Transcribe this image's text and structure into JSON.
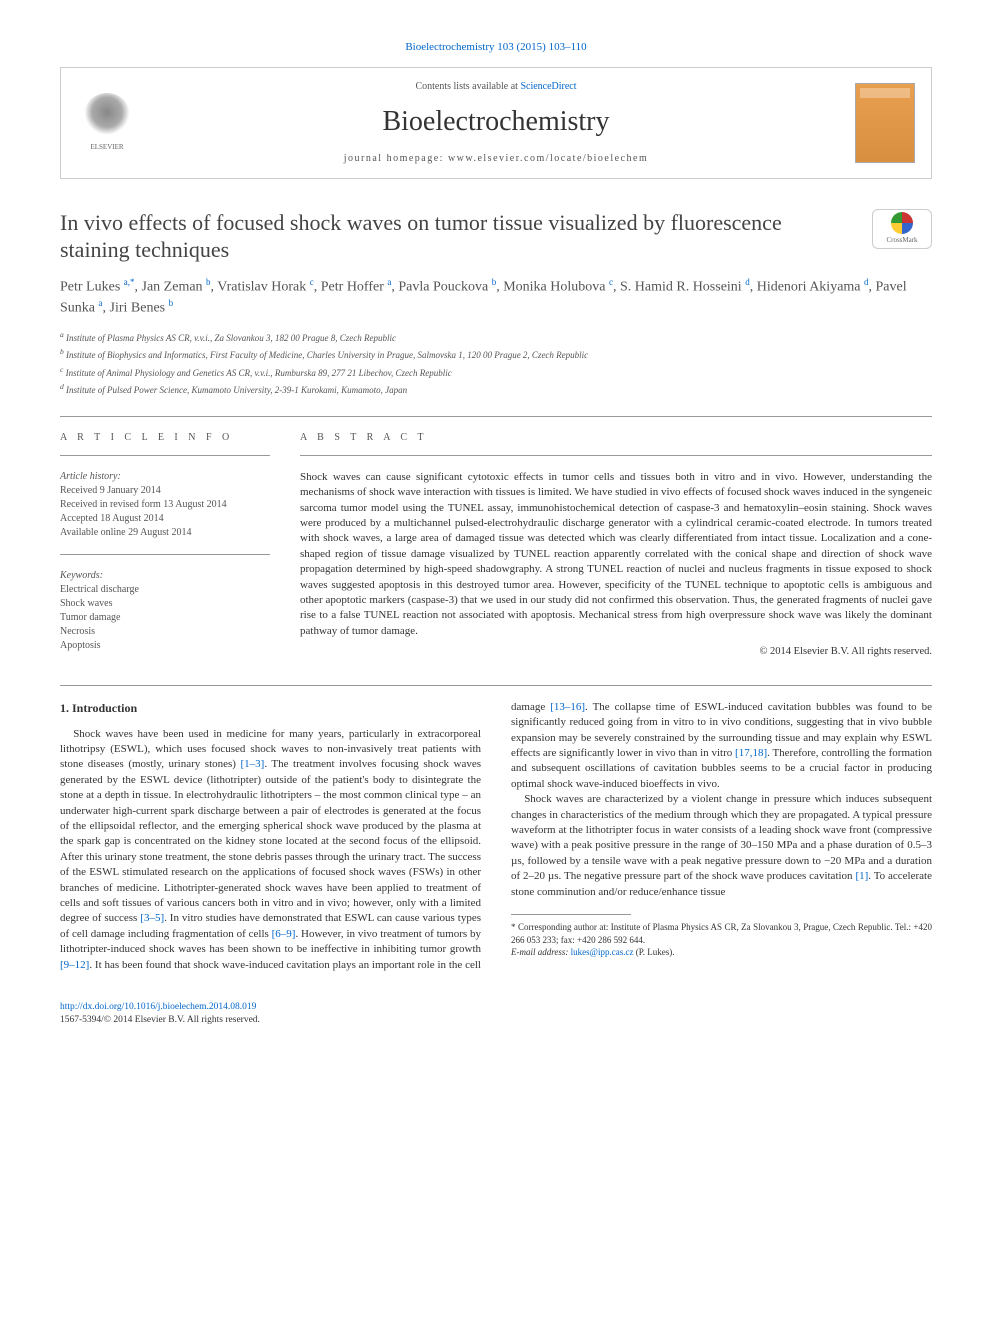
{
  "top_citation": "Bioelectrochemistry 103 (2015) 103–110",
  "header": {
    "contents_prefix": "Contents lists available at ",
    "contents_link": "ScienceDirect",
    "journal": "Bioelectrochemistry",
    "homepage_prefix": "journal homepage: ",
    "homepage": "www.elsevier.com/locate/bioelechem",
    "publisher_name": "ELSEVIER"
  },
  "crossmark_label": "CrossMark",
  "title": "In vivo effects of focused shock waves on tumor tissue visualized by fluorescence staining techniques",
  "authors_html_parts": [
    {
      "name": "Petr Lukes ",
      "sup": "a,*"
    },
    {
      "name": ", Jan Zeman ",
      "sup": "b"
    },
    {
      "name": ", Vratislav Horak ",
      "sup": "c"
    },
    {
      "name": ", Petr Hoffer ",
      "sup": "a"
    },
    {
      "name": ", Pavla Pouckova ",
      "sup": "b"
    },
    {
      "name": ", Monika Holubova ",
      "sup": "c"
    },
    {
      "name": ", S. Hamid R. Hosseini ",
      "sup": "d"
    },
    {
      "name": ", Hidenori Akiyama ",
      "sup": "d"
    },
    {
      "name": ", Pavel Sunka ",
      "sup": "a"
    },
    {
      "name": ", Jiri Benes ",
      "sup": "b"
    }
  ],
  "affiliations": [
    {
      "sup": "a",
      "text": " Institute of Plasma Physics AS CR, v.v.i., Za Slovankou 3, 182 00 Prague 8, Czech Republic"
    },
    {
      "sup": "b",
      "text": " Institute of Biophysics and Informatics, First Faculty of Medicine, Charles University in Prague, Salmovska 1, 120 00 Prague 2, Czech Republic"
    },
    {
      "sup": "c",
      "text": " Institute of Animal Physiology and Genetics AS CR, v.v.i., Rumburska 89, 277 21 Libechov, Czech Republic"
    },
    {
      "sup": "d",
      "text": " Institute of Pulsed Power Science, Kumamoto University, 2-39-1 Kurokami, Kumamoto, Japan"
    }
  ],
  "article_info": {
    "label": "A R T I C L E   I N F O",
    "history_label": "Article history:",
    "history": [
      "Received 9 January 2014",
      "Received in revised form 13 August 2014",
      "Accepted 18 August 2014",
      "Available online 29 August 2014"
    ],
    "keywords_label": "Keywords:",
    "keywords": [
      "Electrical discharge",
      "Shock waves",
      "Tumor damage",
      "Necrosis",
      "Apoptosis"
    ]
  },
  "abstract": {
    "label": "A B S T R A C T",
    "text": "Shock waves can cause significant cytotoxic effects in tumor cells and tissues both in vitro and in vivo. However, understanding the mechanisms of shock wave interaction with tissues is limited. We have studied in vivo effects of focused shock waves induced in the syngeneic sarcoma tumor model using the TUNEL assay, immunohistochemical detection of caspase-3 and hematoxylin–eosin staining. Shock waves were produced by a multichannel pulsed-electrohydraulic discharge generator with a cylindrical ceramic-coated electrode. In tumors treated with shock waves, a large area of damaged tissue was detected which was clearly differentiated from intact tissue. Localization and a cone-shaped region of tissue damage visualized by TUNEL reaction apparently correlated with the conical shape and direction of shock wave propagation determined by high-speed shadowgraphy. A strong TUNEL reaction of nuclei and nucleus fragments in tissue exposed to shock waves suggested apoptosis in this destroyed tumor area. However, specificity of the TUNEL technique to apoptotic cells is ambiguous and other apoptotic markers (caspase-3) that we used in our study did not confirmed this observation. Thus, the generated fragments of nuclei gave rise to a false TUNEL reaction not associated with apoptosis. Mechanical stress from high overpressure shock wave was likely the dominant pathway of tumor damage.",
    "copyright": "© 2014 Elsevier B.V. All rights reserved."
  },
  "body": {
    "intro_heading": "1. Introduction",
    "para1_pre": "Shock waves have been used in medicine for many years, particularly in extracorporeal lithotripsy (ESWL), which uses focused shock waves to non-invasively treat patients with stone diseases (mostly, urinary stones) ",
    "para1_ref1": "[1–3]",
    "para1_post": ". The treatment involves focusing shock waves generated by the ESWL device (lithotripter) outside of the patient's body to disintegrate the stone at a depth in tissue. In electrohydraulic lithotripters – the most common clinical type – an underwater high-current spark discharge between a pair of electrodes is generated at the focus of the ellipsoidal reflector, and the emerging spherical shock wave produced by the plasma at the spark gap is concentrated on the kidney stone located at the second focus of the ellipsoid. After this urinary stone treatment, the stone debris passes through the urinary tract. The success of the ESWL stimulated research on the applications of focused shock waves (FSWs) in other branches of medicine. Lithotripter-generated shock waves have been applied to treatment of cells and soft tissues of various cancers both in vitro and in vivo; however, only with a limited degree of ",
    "para1_cont_pre": "success ",
    "para1_ref2": "[3–5]",
    "para1_cont_mid1": ". In vitro studies have demonstrated that ESWL can cause various types of cell damage including fragmentation of cells ",
    "para1_ref3": "[6–9]",
    "para1_cont_mid2": ". However, in vivo treatment of tumors by lithotripter-induced shock waves has been shown to be ineffective in inhibiting tumor growth ",
    "para1_ref4": "[9–12]",
    "para1_cont_mid3": ". It has been found that shock wave-induced cavitation plays an important role in the cell damage ",
    "para1_ref5": "[13–16]",
    "para1_cont_mid4": ". The collapse time of ESWL-induced cavitation bubbles was found to be significantly reduced going from in vitro to in vivo conditions, suggesting that in vivo bubble expansion may be severely constrained by the surrounding tissue and may explain why ESWL effects are significantly lower in vivo than in vitro ",
    "para1_ref6": "[17,18]",
    "para1_cont_end": ". Therefore, controlling the formation and subsequent oscillations of cavitation bubbles seems to be a crucial factor in producing optimal shock wave-induced bioeffects in vivo.",
    "para2_pre": "Shock waves are characterized by a violent change in pressure which induces subsequent changes in characteristics of the medium through which they are propagated. A typical pressure waveform at the lithotripter focus in water consists of a leading shock wave front (compressive wave) with a peak positive pressure in the range of 30–150 MPa and a phase duration of 0.5–3 µs, followed by a tensile wave with a peak negative pressure down to −20 MPa and a duration of 2–20 µs. The negative pressure part of the shock wave produces cavitation ",
    "para2_ref1": "[1]",
    "para2_post": ". To accelerate stone comminution and/or reduce/enhance tissue"
  },
  "footnote": {
    "corr_marker": "* ",
    "corr_text": "Corresponding author at: Institute of Plasma Physics AS CR, Za Slovankou 3, Prague, Czech Republic. Tel.: +420 266 053 233; fax: +420 286 592 644.",
    "email_label": "E-mail address: ",
    "email": "lukes@ipp.cas.cz",
    "email_suffix": " (P. Lukes)."
  },
  "footer": {
    "doi": "http://dx.doi.org/10.1016/j.bioelechem.2014.08.019",
    "issn_line": "1567-5394/© 2014 Elsevier B.V. All rights reserved."
  },
  "colors": {
    "link": "#0066cc",
    "text": "#333333",
    "muted": "#555555",
    "rule": "#999999",
    "cover_bg": "#e8a050"
  }
}
